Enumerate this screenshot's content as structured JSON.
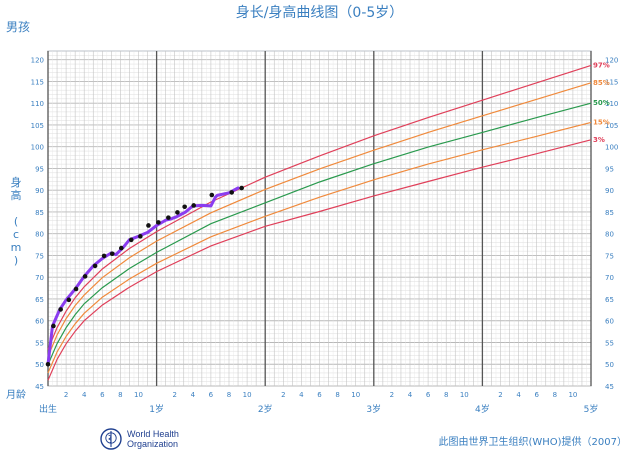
{
  "page": {
    "title": "身长/身高曲线图（0-5岁）",
    "gender": "男孩",
    "yaxis_title_chars": [
      "身",
      "高",
      "",
      "(",
      "c",
      "m",
      ")"
    ],
    "month_label": "月龄",
    "who_text": "World Health\nOrganization",
    "credit": "此图由世界卫生组织(WHO)提供（2007）"
  },
  "chart_data": {
    "type": "line",
    "title": "身长/身高曲线图（0-5岁）",
    "xlabel": "月龄",
    "ylabel": "身高 (cm)",
    "xlim": [
      0,
      60
    ],
    "ylim": [
      45,
      122
    ],
    "grid": true,
    "x_tick_labels": [
      {
        "x": 0,
        "label": "出生"
      },
      {
        "x": 2,
        "label": "2"
      },
      {
        "x": 4,
        "label": "4"
      },
      {
        "x": 6,
        "label": "6"
      },
      {
        "x": 8,
        "label": "8"
      },
      {
        "x": 10,
        "label": "10"
      },
      {
        "x": 12,
        "label": "1岁"
      },
      {
        "x": 14,
        "label": "2"
      },
      {
        "x": 16,
        "label": "4"
      },
      {
        "x": 18,
        "label": "6"
      },
      {
        "x": 20,
        "label": "8"
      },
      {
        "x": 22,
        "label": "10"
      },
      {
        "x": 24,
        "label": "2岁"
      },
      {
        "x": 26,
        "label": "2"
      },
      {
        "x": 28,
        "label": "4"
      },
      {
        "x": 30,
        "label": "6"
      },
      {
        "x": 32,
        "label": "8"
      },
      {
        "x": 34,
        "label": "10"
      },
      {
        "x": 36,
        "label": "3岁"
      },
      {
        "x": 38,
        "label": "2"
      },
      {
        "x": 40,
        "label": "4"
      },
      {
        "x": 42,
        "label": "6"
      },
      {
        "x": 44,
        "label": "8"
      },
      {
        "x": 46,
        "label": "10"
      },
      {
        "x": 48,
        "label": "4岁"
      },
      {
        "x": 50,
        "label": "2"
      },
      {
        "x": 52,
        "label": "4"
      },
      {
        "x": 54,
        "label": "6"
      },
      {
        "x": 56,
        "label": "8"
      },
      {
        "x": 58,
        "label": "10"
      },
      {
        "x": 60,
        "label": "5岁"
      }
    ],
    "y_ticks": [
      45,
      50,
      55,
      60,
      65,
      70,
      75,
      80,
      85,
      90,
      95,
      100,
      105,
      110,
      115,
      120
    ],
    "x_major_lines": [
      0,
      12,
      24,
      36,
      48,
      60
    ],
    "series": [
      {
        "name": "97%",
        "color": "#e0405a",
        "x": [
          0,
          1,
          2,
          3,
          4,
          6,
          9,
          12,
          18,
          24,
          30,
          36,
          42,
          48,
          54,
          60
        ],
        "values": [
          53.4,
          58.4,
          62.2,
          65.3,
          67.8,
          71.9,
          76.6,
          80.5,
          87.3,
          93.0,
          97.9,
          102.5,
          106.7,
          110.7,
          114.7,
          118.7
        ]
      },
      {
        "name": "85%",
        "color": "#f08a3c",
        "x": [
          0,
          1,
          2,
          3,
          4,
          6,
          9,
          12,
          18,
          24,
          30,
          36,
          42,
          48,
          54,
          60
        ],
        "values": [
          51.8,
          56.7,
          60.5,
          63.5,
          65.9,
          69.9,
          74.5,
          78.3,
          84.8,
          90.2,
          94.9,
          99.2,
          103.3,
          107.1,
          110.9,
          114.7
        ]
      },
      {
        "name": "50%",
        "color": "#2a9a4e",
        "x": [
          0,
          1,
          2,
          3,
          4,
          6,
          9,
          12,
          18,
          24,
          30,
          36,
          42,
          48,
          54,
          60
        ],
        "values": [
          49.9,
          54.7,
          58.4,
          61.4,
          63.9,
          67.6,
          72.0,
          75.7,
          82.3,
          87.1,
          91.9,
          96.1,
          99.9,
          103.3,
          106.7,
          110.0
        ]
      },
      {
        "name": "15%",
        "color": "#f08a3c",
        "x": [
          0,
          1,
          2,
          3,
          4,
          6,
          9,
          12,
          18,
          24,
          30,
          36,
          42,
          48,
          54,
          60
        ],
        "values": [
          48.0,
          52.8,
          56.4,
          59.3,
          61.7,
          65.4,
          69.6,
          73.2,
          79.3,
          84.0,
          88.4,
          92.4,
          96.0,
          99.3,
          102.4,
          105.6
        ]
      },
      {
        "name": "3%",
        "color": "#e0405a",
        "x": [
          0,
          1,
          2,
          3,
          4,
          6,
          9,
          12,
          18,
          24,
          30,
          36,
          42,
          48,
          54,
          60
        ],
        "values": [
          46.3,
          51.1,
          54.7,
          57.6,
          60.0,
          63.6,
          67.7,
          71.3,
          77.2,
          81.7,
          85.1,
          88.7,
          92.0,
          95.3,
          98.4,
          101.6
        ]
      }
    ],
    "child_measurements": {
      "color": "#8a3cf0",
      "marker_color": "#111111",
      "x": [
        0,
        0.5,
        1.3,
        2,
        3,
        4,
        5,
        6,
        7,
        7.5,
        8.3,
        9,
        10,
        11,
        12,
        13,
        13.6,
        14.2,
        15.2,
        16,
        17,
        18,
        18.5,
        18.7,
        20,
        21
      ],
      "values": [
        50,
        58.8,
        62.6,
        64.8,
        67.3,
        70.2,
        72.6,
        74.3,
        75.6,
        75.2,
        76.8,
        78.6,
        79.4,
        80.3,
        81.9,
        83.1,
        83.4,
        83.9,
        85.0,
        86.4,
        86.5,
        86.4,
        88.4,
        88.8,
        89.4,
        90.5
      ],
      "markers": [
        {
          "x": 0,
          "y": 50
        },
        {
          "x": 0.6,
          "y": 58.8
        },
        {
          "x": 1.4,
          "y": 62.6
        },
        {
          "x": 2.3,
          "y": 64.8
        },
        {
          "x": 3.1,
          "y": 67.3
        },
        {
          "x": 4.1,
          "y": 70.2
        },
        {
          "x": 5.2,
          "y": 72.6
        },
        {
          "x": 6.2,
          "y": 74.9
        },
        {
          "x": 7.1,
          "y": 75.4
        },
        {
          "x": 8.1,
          "y": 76.7
        },
        {
          "x": 9.2,
          "y": 78.6
        },
        {
          "x": 10.2,
          "y": 79.4
        },
        {
          "x": 11.1,
          "y": 81.9
        },
        {
          "x": 12.2,
          "y": 82.6
        },
        {
          "x": 13.3,
          "y": 83.7
        },
        {
          "x": 14.3,
          "y": 84.9
        },
        {
          "x": 15.1,
          "y": 86.2
        },
        {
          "x": 16.1,
          "y": 86.5
        },
        {
          "x": 18.1,
          "y": 88.9
        },
        {
          "x": 20.3,
          "y": 89.5
        },
        {
          "x": 21.4,
          "y": 90.5
        }
      ]
    }
  }
}
